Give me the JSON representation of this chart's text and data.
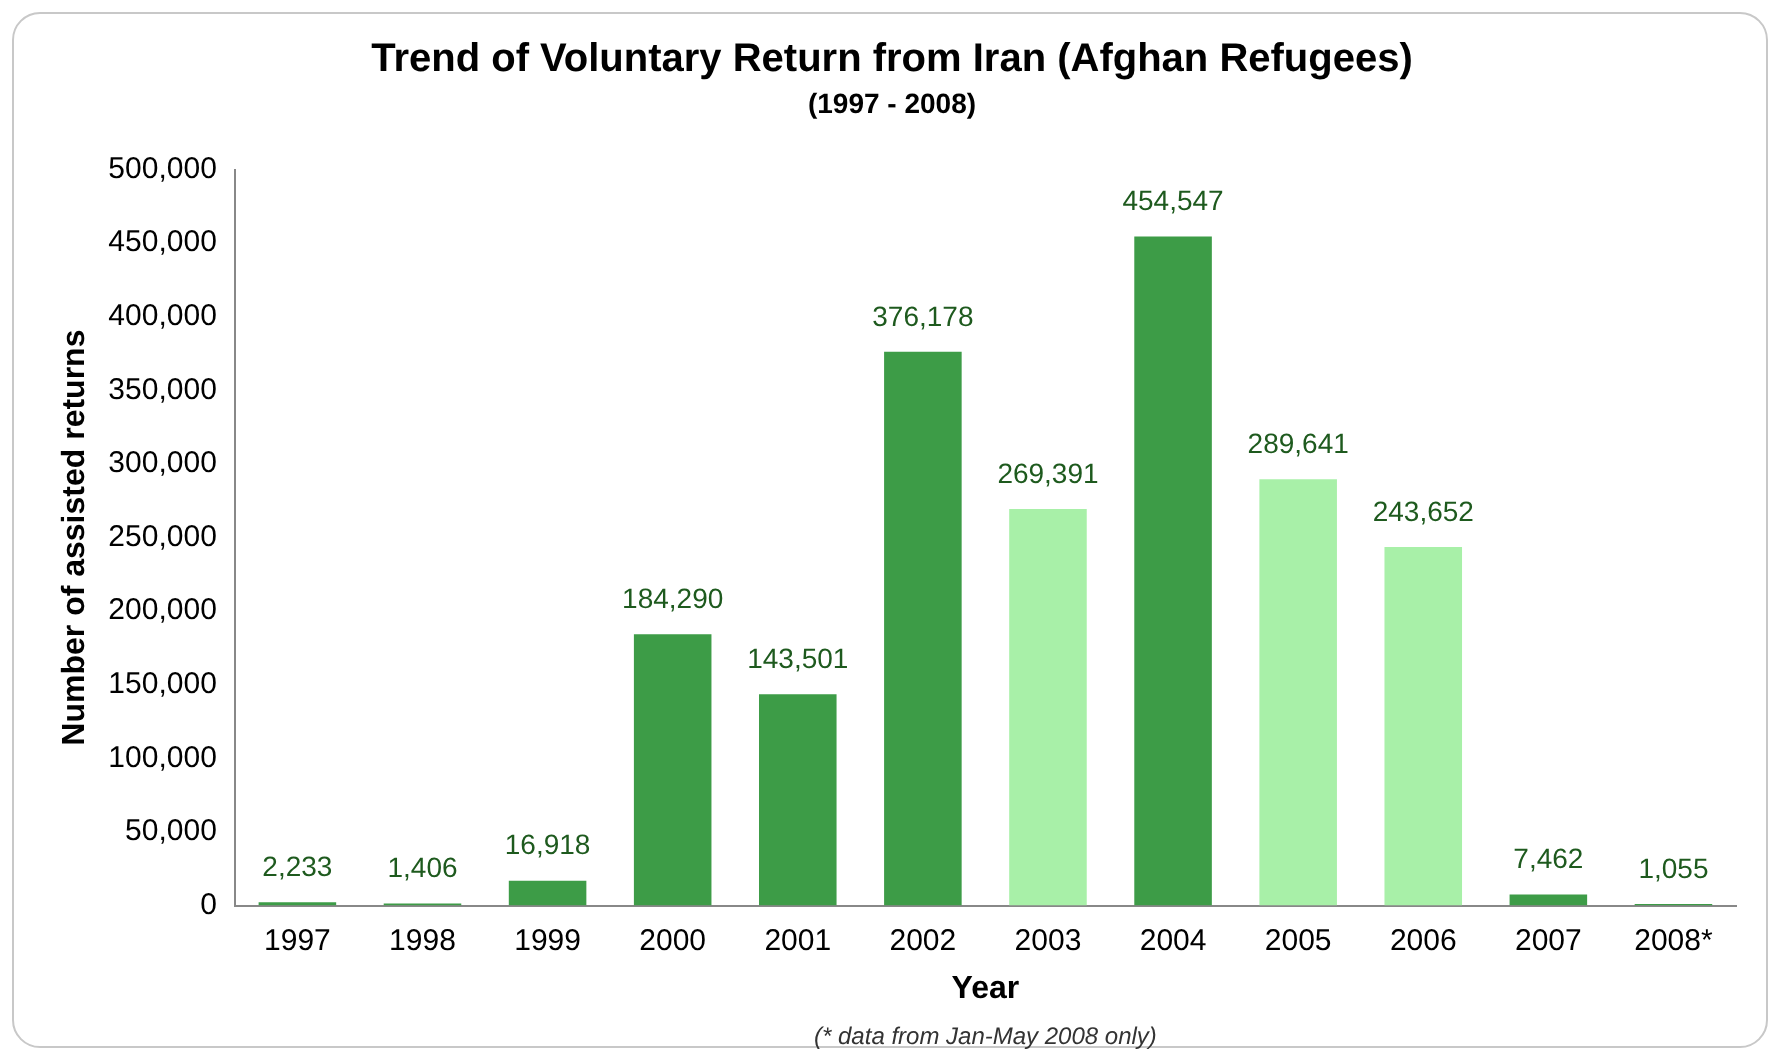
{
  "chart_data": {
    "type": "bar",
    "title": "Trend of Voluntary Return from Iran (Afghan Refugees)",
    "subtitle": "(1997 - 2008)",
    "xlabel": "Year",
    "ylabel": "Number of assisted returns",
    "categories": [
      "1997",
      "1998",
      "1999",
      "2000",
      "2001",
      "2002",
      "2003",
      "2004",
      "2005",
      "2006",
      "2007",
      "2008*"
    ],
    "values": [
      2233,
      1406,
      16918,
      184290,
      143501,
      376178,
      269391,
      454547,
      289641,
      243652,
      7462,
      1055
    ],
    "colors": [
      "#3d9c47",
      "#3d9c47",
      "#3d9c47",
      "#3d9c47",
      "#3d9c47",
      "#3d9c47",
      "#a8f0a8",
      "#3d9c47",
      "#a8f0a8",
      "#a8f0a8",
      "#3d9c47",
      "#3d9c47"
    ],
    "value_labels": [
      "2,233",
      "1,406",
      "16,918",
      "184,290",
      "143,501",
      "376,178",
      "269,391",
      "454,547",
      "289,641",
      "243,652",
      "7,462",
      "1,055"
    ],
    "ylim": [
      0,
      500000
    ],
    "yticks": [
      0,
      {
        "value": 50000,
        "label": "50,000"
      },
      {
        "value": 100000,
        "label": "100,000"
      },
      {
        "value": 150000,
        "label": "150,000"
      },
      {
        "value": 200000,
        "label": "200,000"
      },
      {
        "value": 250000,
        "label": "250,000"
      },
      {
        "value": 300000,
        "label": "300,000"
      },
      {
        "value": 350000,
        "label": "350,000"
      },
      {
        "value": 400000,
        "label": "400,000"
      },
      {
        "value": 450000,
        "label": "450,000"
      },
      {
        "value": 500000,
        "label": "500,000"
      }
    ],
    "grid": false,
    "legend": false,
    "annotations": [
      "(* data from Jan-May 2008 only)"
    ]
  }
}
